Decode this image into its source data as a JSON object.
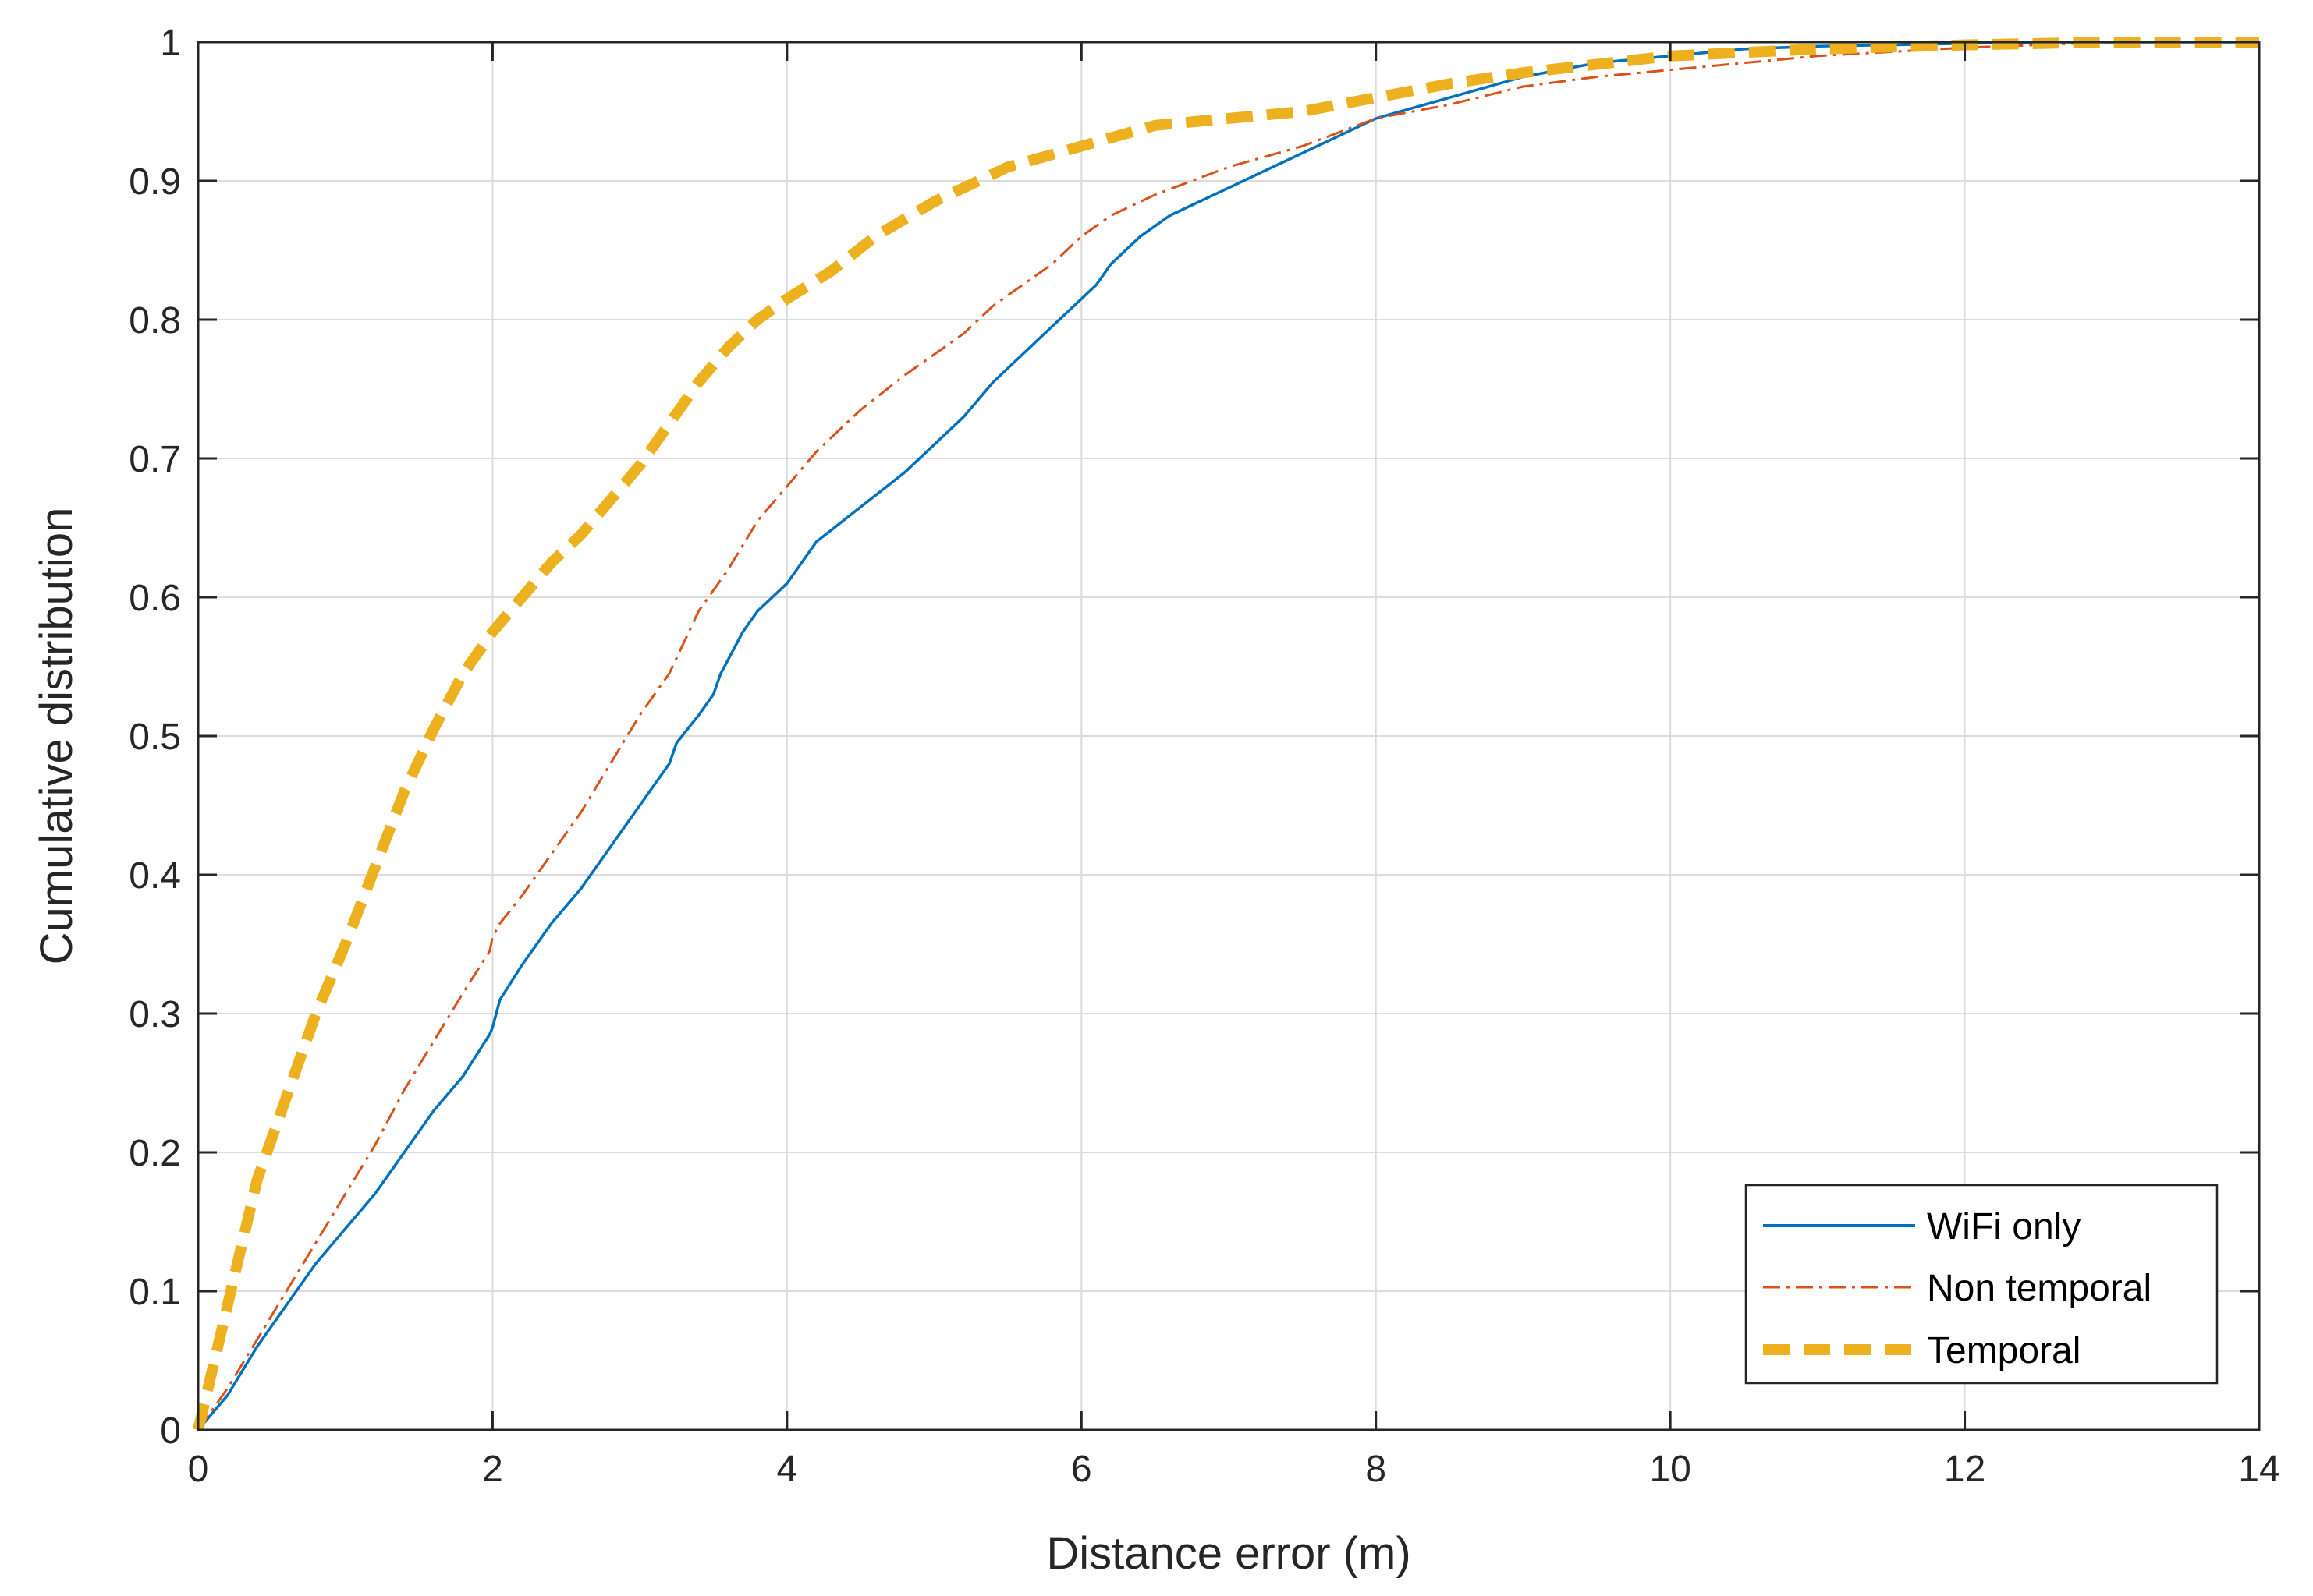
{
  "chart_data": {
    "type": "line",
    "title": "",
    "xlabel": "Distance error (m)",
    "ylabel": "Cumulative distribution",
    "xlim": [
      0,
      14
    ],
    "ylim": [
      0,
      1
    ],
    "xticks": [
      0,
      2,
      4,
      6,
      8,
      10,
      12,
      14
    ],
    "xtick_labels": [
      "0",
      "2",
      "4",
      "6",
      "8",
      "10",
      "12",
      "14"
    ],
    "yticks": [
      0,
      0.1,
      0.2,
      0.3,
      0.4,
      0.5,
      0.6,
      0.7,
      0.8,
      0.9,
      1
    ],
    "ytick_labels": [
      "0",
      "0.1",
      "0.2",
      "0.3",
      "0.4",
      "0.5",
      "0.6",
      "0.7",
      "0.8",
      "0.9",
      "1"
    ],
    "grid": true,
    "legend_position": "bottom-right",
    "series": [
      {
        "name": "WiFi only",
        "color": "#0072BD",
        "style": "solid",
        "x": [
          0,
          0.2,
          0.4,
          0.6,
          0.8,
          1.0,
          1.2,
          1.4,
          1.6,
          1.8,
          1.98,
          2.0,
          2.05,
          2.2,
          2.4,
          2.6,
          2.8,
          3.0,
          3.2,
          3.25,
          3.4,
          3.5,
          3.55,
          3.6,
          3.7,
          3.8,
          4.0,
          4.2,
          4.5,
          4.8,
          5.0,
          5.2,
          5.4,
          5.6,
          5.8,
          6.0,
          6.1,
          6.2,
          6.4,
          6.6,
          7.0,
          7.2,
          7.5,
          8.0,
          8.5,
          9.0,
          9.5,
          10.0,
          10.5,
          11.0,
          11.5,
          12.0,
          12.5,
          13.0,
          14.0
        ],
        "y": [
          0,
          0.025,
          0.06,
          0.09,
          0.12,
          0.145,
          0.17,
          0.2,
          0.23,
          0.255,
          0.285,
          0.29,
          0.31,
          0.335,
          0.365,
          0.39,
          0.42,
          0.45,
          0.48,
          0.495,
          0.515,
          0.53,
          0.545,
          0.555,
          0.575,
          0.59,
          0.61,
          0.64,
          0.665,
          0.69,
          0.71,
          0.73,
          0.755,
          0.775,
          0.795,
          0.815,
          0.825,
          0.84,
          0.86,
          0.875,
          0.895,
          0.905,
          0.92,
          0.945,
          0.96,
          0.975,
          0.985,
          0.99,
          0.995,
          0.997,
          0.998,
          0.999,
          1.0,
          1.0,
          1.0
        ]
      },
      {
        "name": "Non temporal",
        "color": "#D95319",
        "style": "dashdot",
        "x": [
          0,
          0.2,
          0.4,
          0.6,
          0.8,
          1.0,
          1.2,
          1.4,
          1.6,
          1.8,
          1.98,
          2.0,
          2.05,
          2.2,
          2.4,
          2.6,
          2.8,
          3.0,
          3.2,
          3.4,
          3.6,
          3.8,
          4.0,
          4.2,
          4.5,
          4.8,
          5.0,
          5.2,
          5.4,
          5.6,
          5.8,
          6.0,
          6.2,
          6.5,
          7.0,
          7.5,
          8.0,
          8.5,
          9.0,
          9.5,
          10.0,
          10.5,
          11.0,
          11.5,
          12.0,
          12.5,
          13.0,
          14.0
        ],
        "y": [
          0,
          0.03,
          0.065,
          0.1,
          0.135,
          0.17,
          0.205,
          0.245,
          0.28,
          0.315,
          0.345,
          0.355,
          0.365,
          0.385,
          0.415,
          0.445,
          0.48,
          0.515,
          0.545,
          0.59,
          0.62,
          0.655,
          0.68,
          0.705,
          0.735,
          0.76,
          0.775,
          0.79,
          0.81,
          0.825,
          0.84,
          0.86,
          0.875,
          0.89,
          0.91,
          0.925,
          0.945,
          0.955,
          0.968,
          0.975,
          0.98,
          0.985,
          0.99,
          0.993,
          0.996,
          0.998,
          1.0,
          1.0
        ]
      },
      {
        "name": "Temporal",
        "color": "#EDB120",
        "style": "dashed",
        "x": [
          0,
          0.2,
          0.4,
          0.6,
          0.8,
          1.0,
          1.2,
          1.4,
          1.6,
          1.8,
          2.0,
          2.2,
          2.4,
          2.6,
          2.8,
          3.0,
          3.2,
          3.4,
          3.6,
          3.8,
          4.0,
          4.3,
          4.6,
          5.0,
          5.5,
          6.0,
          6.5,
          7.0,
          7.5,
          8.0,
          8.5,
          9.0,
          10.0,
          11.0,
          12.0,
          13.0,
          14.0
        ],
        "y": [
          0,
          0.09,
          0.18,
          0.24,
          0.3,
          0.35,
          0.405,
          0.46,
          0.505,
          0.545,
          0.575,
          0.6,
          0.625,
          0.645,
          0.67,
          0.695,
          0.725,
          0.755,
          0.78,
          0.8,
          0.815,
          0.835,
          0.86,
          0.885,
          0.91,
          0.925,
          0.94,
          0.945,
          0.95,
          0.96,
          0.97,
          0.978,
          0.99,
          0.995,
          0.998,
          1.0,
          1.0
        ]
      }
    ]
  }
}
